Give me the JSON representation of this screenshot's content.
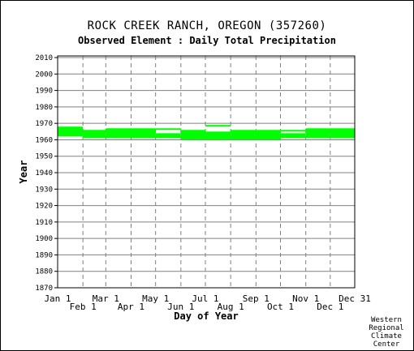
{
  "title": "ROCK CREEK RANCH, OREGON   (357260)",
  "subtitle": "Observed Element : Daily Total Precipitation",
  "credit": [
    "Western",
    "Regional",
    "Climate",
    "Center"
  ],
  "colors": {
    "data": "#00ff00",
    "grid": "#808080",
    "axis": "#000000"
  },
  "chart_data": {
    "type": "heatmap",
    "title": "ROCK CREEK RANCH, OREGON   (357260)",
    "subtitle": "Observed Element : Daily Total Precipitation",
    "xlabel": "Day of Year",
    "ylabel": "Year",
    "xlim": [
      "Jan 1",
      "Dec 31"
    ],
    "ylim": [
      1870,
      2011
    ],
    "x_ticks_top_row": [
      "Jan 1",
      "Mar 1",
      "May 1",
      "Jul 1",
      "Sep 1",
      "Nov 1",
      "Dec 31"
    ],
    "x_ticks_bottom_row": [
      "Feb 1",
      "Apr 1",
      "Jun 1",
      "Aug 1",
      "Oct 1",
      "Dec 1"
    ],
    "x_tick_days": {
      "Jan 1": 1,
      "Feb 1": 32,
      "Mar 1": 60,
      "Apr 1": 91,
      "May 1": 121,
      "Jun 1": 152,
      "Jul 1": 182,
      "Aug 1": 213,
      "Sep 1": 244,
      "Oct 1": 274,
      "Nov 1": 305,
      "Dec 1": 335,
      "Dec 31": 365
    },
    "y_ticks": [
      1870,
      1880,
      1890,
      1900,
      1910,
      1920,
      1930,
      1940,
      1950,
      1960,
      1970,
      1980,
      1990,
      2000,
      2010
    ],
    "grid": true,
    "records": [
      {
        "start": "Jan 1",
        "end": "Feb 1",
        "years": [
          1962,
          1968
        ]
      },
      {
        "start": "Feb 1",
        "end": "Mar 1",
        "years": [
          1961,
          1966
        ]
      },
      {
        "start": "Mar 1",
        "end": "May 1",
        "years": [
          1961,
          1967
        ]
      },
      {
        "start": "May 1",
        "end": "Jun 1",
        "years": [
          1961,
          1964
        ]
      },
      {
        "start": "May 1",
        "end": "Jun 1",
        "years": [
          1966,
          1967
        ]
      },
      {
        "start": "Jun 1",
        "end": "Jul 1",
        "years": [
          1960,
          1966
        ]
      },
      {
        "start": "Jul 1",
        "end": "Aug 1",
        "years": [
          1960,
          1965
        ]
      },
      {
        "start": "Jul 1",
        "end": "Aug 1",
        "years": [
          1968,
          1969
        ]
      },
      {
        "start": "Aug 1",
        "end": "Oct 1",
        "years": [
          1960,
          1966
        ]
      },
      {
        "start": "Oct 1",
        "end": "Nov 1",
        "years": [
          1961,
          1964
        ]
      },
      {
        "start": "Oct 1",
        "end": "Nov 1",
        "years": [
          1965,
          1966
        ]
      },
      {
        "start": "Nov 1",
        "end": "Dec 1",
        "years": [
          1961,
          1967
        ]
      },
      {
        "start": "Dec 1",
        "end": "Dec 31",
        "years": [
          1961,
          1967
        ]
      }
    ]
  }
}
